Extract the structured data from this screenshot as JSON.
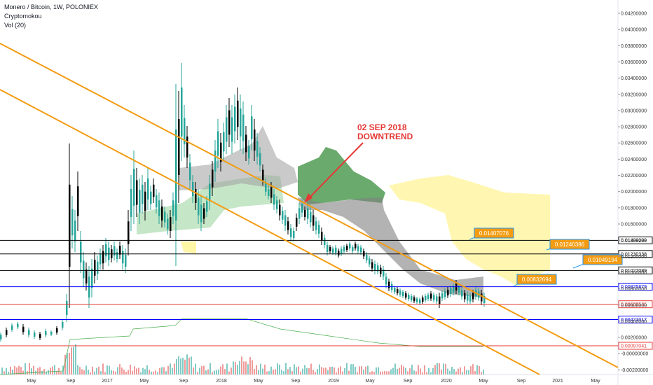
{
  "header": {
    "symbol_line": "Monero / Bitcoin, 1W, POLONIEX",
    "indicator_1": "Cryptomokou",
    "indicator_2": "Vol (20)"
  },
  "chart_data": {
    "type": "candlestick",
    "title": "Monero / Bitcoin, 1W, POLONIEX",
    "y_axis": {
      "ylim": [
        -0.002,
        0.043
      ],
      "ticks": [
        "0.04200000",
        "0.04000000",
        "0.03800000",
        "0.03600000",
        "0.03400000",
        "0.03200000",
        "0.03000000",
        "0.02800000",
        "0.02600000",
        "0.02400000",
        "0.02200000",
        "0.02000000",
        "0.01800000",
        "0.01600000",
        "0.01400000",
        "0.01200000",
        "0.01000000",
        "0.00800000",
        "0.00600000",
        "0.00400000",
        "0.00200000",
        "-0.00000000",
        "-0.00200000"
      ]
    },
    "x_axis": {
      "ticks": [
        "May",
        "Sep",
        "2017",
        "May",
        "Sep",
        "2018",
        "May",
        "Sep",
        "2019",
        "May",
        "Sep",
        "2020",
        "May",
        "Sep",
        "2021",
        "May"
      ]
    },
    "horizontal_levels": [
      {
        "value": 0.01398239,
        "label": "0.01398239",
        "color": "#000000"
      },
      {
        "value": 0.01230338,
        "label": "0.01230338",
        "color": "#000000"
      },
      {
        "value": 0.01027089,
        "label": "0.01027089",
        "color": "#000000"
      },
      {
        "value": 0.00825879,
        "label": "0.00825879",
        "color": "#0000ff"
      },
      {
        "value": 0.00609526,
        "label": "0.00609526",
        "color": "#e53935"
      },
      {
        "value": 0.00421017,
        "label": "0.00421017",
        "color": "#0000ff"
      },
      {
        "value": 0.00097041,
        "label": "0.00097041",
        "color": "#e53935"
      }
    ],
    "cloud_callouts": [
      "0.01407076",
      "0.01240386",
      "0.01049194",
      "0.00832694"
    ],
    "annotation": {
      "line1": "02 SEP 2018",
      "line2": "DOWNTREND"
    },
    "colors": {
      "trendline": "#f39c12",
      "candle_up": "#26a69a",
      "candle_down": "#000000",
      "cloud_green": "#4caf50",
      "cloud_gray": "#808080",
      "cloud_yellow": "#fff59d",
      "callout_bg": "#f39c12",
      "callout_border": "#2196f3",
      "annotation": "#e53935"
    }
  }
}
